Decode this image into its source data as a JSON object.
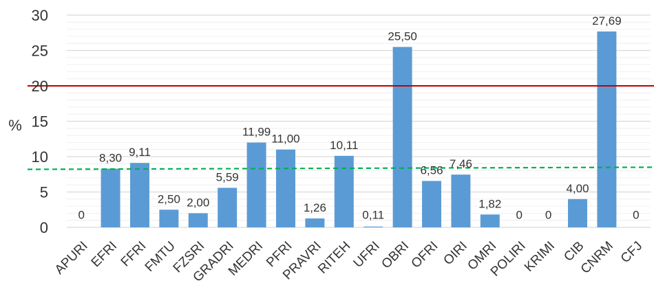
{
  "chart_data": {
    "type": "bar",
    "title": "",
    "xlabel": "",
    "ylabel": "%",
    "ylim": [
      0,
      30
    ],
    "yticks": [
      "0",
      "5",
      "10",
      "15",
      "20",
      "25",
      "30"
    ],
    "grid": true,
    "categories": [
      "APURI",
      "EFRI",
      "FFRI",
      "FMTU",
      "FZSRI",
      "GRADRI",
      "MEDRI",
      "PFRI",
      "PRAVRI",
      "RITEH",
      "UFRI",
      "OBRI",
      "OFRI",
      "OIRI",
      "OMRI",
      "POLIRI",
      "KRIMI",
      "CIB",
      "CNRM",
      "CFJ"
    ],
    "values": [
      0,
      8.3,
      9.11,
      2.5,
      2.0,
      5.59,
      11.99,
      11.0,
      1.26,
      10.11,
      0.11,
      25.5,
      6.56,
      7.46,
      1.82,
      0,
      0,
      4.0,
      27.69,
      0
    ],
    "data_labels": [
      "0",
      "8,30",
      "9,11",
      "2,50",
      "2,00",
      "5,59",
      "11,99",
      "11,00",
      "1,26",
      "10,11",
      "0,11",
      "25,50",
      "6,56",
      "7,46",
      "1,82",
      "0",
      "0",
      "4,00",
      "27,69",
      "0"
    ],
    "bar_color": "#5b9bd5",
    "reference_lines": [
      {
        "style": "solid",
        "color": "#c00000",
        "y_start": 20,
        "y_end": 20
      },
      {
        "style": "dashed",
        "color": "#00b050",
        "y_start": 8.2,
        "y_end": 8.5
      }
    ]
  }
}
